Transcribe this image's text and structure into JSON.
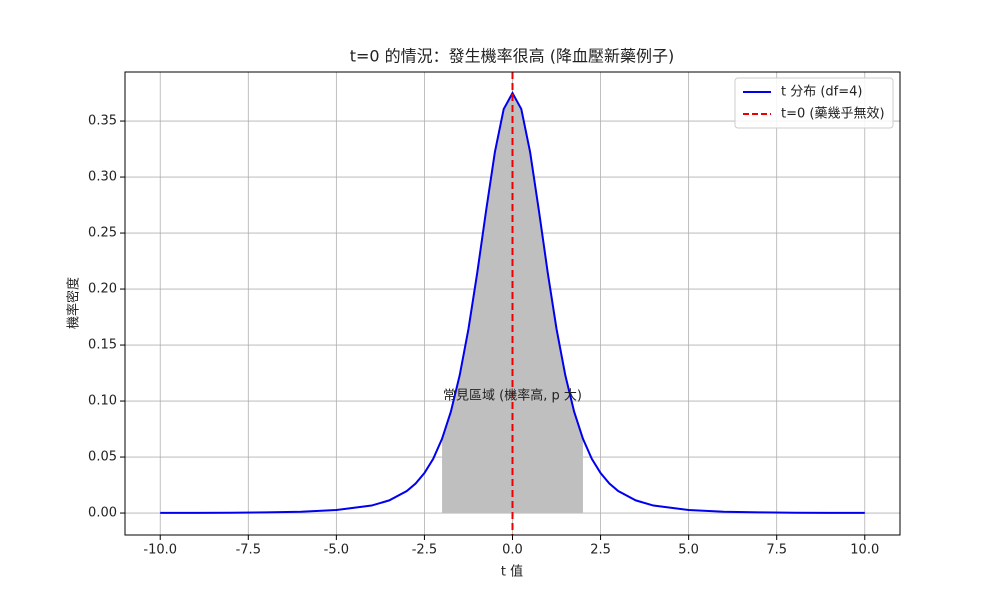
{
  "chart_data": {
    "type": "line",
    "title": "t=0 的情況：發生機率很高 (降血壓新藥例子)",
    "x_label": "t 值",
    "y_label": "機率密度",
    "x": [
      -10,
      -9,
      -8,
      -7,
      -6,
      -5,
      -4,
      -3.5,
      -3,
      -2.75,
      -2.5,
      -2.25,
      -2,
      -1.75,
      -1.5,
      -1.25,
      -1,
      -0.75,
      -0.5,
      -0.25,
      0,
      0.25,
      0.5,
      0.75,
      1,
      1.25,
      1.5,
      1.75,
      2,
      2.25,
      2.5,
      2.75,
      3,
      3.5,
      4,
      5,
      6,
      7,
      8,
      9,
      10
    ],
    "series": [
      {
        "name": "t 分布 (df=4)",
        "color": "#0000ee",
        "values": [
          0.0001,
          0.0002,
          0.0003,
          0.0006,
          0.0012,
          0.0027,
          0.0067,
          0.0113,
          0.0197,
          0.0264,
          0.0357,
          0.0485,
          0.0663,
          0.0905,
          0.1229,
          0.1644,
          0.2147,
          0.2699,
          0.3223,
          0.3607,
          0.375,
          0.3607,
          0.3223,
          0.2699,
          0.2147,
          0.1644,
          0.1229,
          0.0905,
          0.0663,
          0.0485,
          0.0357,
          0.0264,
          0.0197,
          0.0113,
          0.0067,
          0.0027,
          0.0012,
          0.0006,
          0.0003,
          0.0002,
          0.0001
        ]
      }
    ],
    "shade": [
      -2,
      2
    ],
    "shade_color": "#bfbfbf",
    "vline": {
      "name": "t=0 (藥幾乎無效)",
      "x": 0,
      "color": "#ee0000"
    },
    "annotation": {
      "text": "常見區域 (機率高, p 大)",
      "x": 0,
      "y": 0.1
    },
    "xlim": [
      -11,
      11
    ],
    "ylim": [
      -0.0196,
      0.3938
    ],
    "xticks": [
      {
        "value": -10,
        "label": "-10.0"
      },
      -7.5,
      {
        "value": -5,
        "label": "-5.0"
      },
      -2.5,
      {
        "value": 0,
        "label": "0.0"
      },
      2.5,
      {
        "value": 5,
        "label": "5.0"
      },
      7.5,
      {
        "value": 10,
        "label": "10.0"
      }
    ],
    "yticks": [
      {
        "value": 0,
        "label": "0.00"
      },
      0.05,
      {
        "value": 0.1,
        "label": "0.10"
      },
      0.15,
      {
        "value": 0.2,
        "label": "0.20"
      },
      0.25,
      {
        "value": 0.3,
        "label": "0.30"
      },
      0.35
    ],
    "grid": true,
    "legend": "upper right"
  }
}
